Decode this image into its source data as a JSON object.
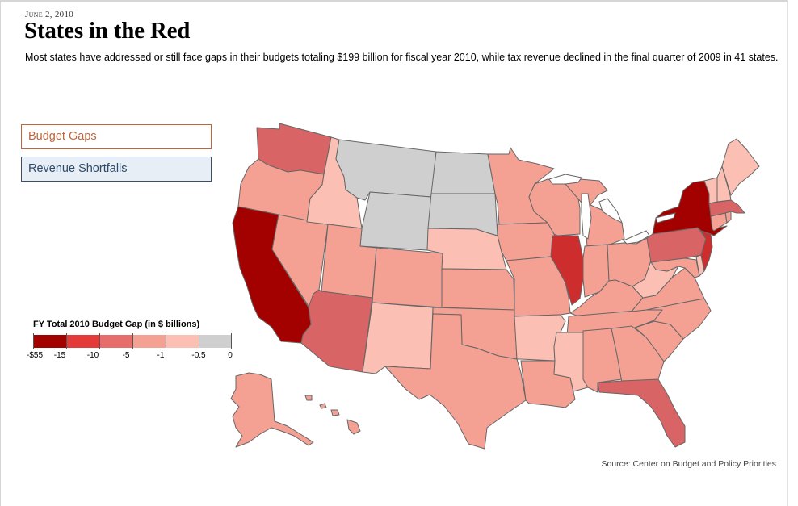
{
  "header": {
    "date": "June 2, 2010",
    "title": "States in the Red",
    "subtitle": "Most states have addressed or still face gaps in their budgets totaling $199 billion for fiscal year 2010, while tax revenue declined in the final quarter of 2009 in 41 states."
  },
  "tabs": [
    {
      "label": "Budget Gaps",
      "selected": true
    },
    {
      "label": "Revenue Shortfalls",
      "selected": false
    }
  ],
  "legend": {
    "title": "FY Total 2010 Budget Gap (in $ billions)",
    "ticks": [
      "-$55",
      "-15",
      "-10",
      "-5",
      "-1",
      "-0.5",
      "0"
    ],
    "colors": [
      "#a30000",
      "#e43a3a",
      "#e76d6a",
      "#f4a194",
      "#fbc0b3",
      "#cfcfcf"
    ]
  },
  "map_data": {
    "bin_colors": {
      "b1": "#a30000",
      "b2": "#cd2d2d",
      "b3": "#d96465",
      "b4": "#f4a194",
      "b5": "#fbc0b3",
      "none": "#cfcfcf"
    },
    "state_bins": {
      "WA": "b3",
      "OR": "b4",
      "CA": "b1",
      "ID": "b5",
      "NV": "b4",
      "AZ": "b3",
      "UT": "b4",
      "MT": "none",
      "WY": "none",
      "ND": "none",
      "SD": "none",
      "NE": "b5",
      "CO": "b4",
      "NM": "b5",
      "KS": "b4",
      "OK": "b4",
      "TX": "b4",
      "MN": "b4",
      "IA": "b4",
      "MO": "b4",
      "AR": "b5",
      "LA": "b4",
      "WI": "b4",
      "IL": "b2",
      "MI": "b4",
      "IN": "b4",
      "OH": "b4",
      "KY": "b4",
      "TN": "b4",
      "MS": "b5",
      "AL": "b4",
      "GA": "b4",
      "FL": "b3",
      "SC": "b4",
      "NC": "b4",
      "VA": "b4",
      "WV": "b5",
      "PA": "b3",
      "NY": "b1",
      "NJ": "b2",
      "MD": "b4",
      "DE": "b5",
      "CT": "b4",
      "RI": "b4",
      "MA": "b3",
      "VT": "b5",
      "NH": "b5",
      "ME": "b5",
      "AK": "b4",
      "HI": "b4"
    }
  },
  "footer": {
    "source": "Source: Center on Budget and Policy Priorities"
  }
}
